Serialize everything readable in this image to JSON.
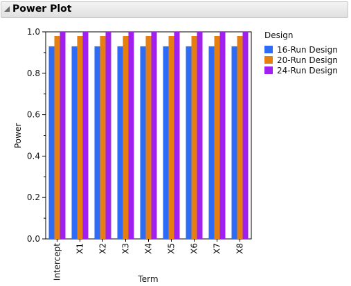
{
  "panel": {
    "title": "Power Plot"
  },
  "chart_data": {
    "type": "bar",
    "title": "",
    "xlabel": "Term",
    "ylabel": "Power",
    "ylim": [
      0,
      1
    ],
    "yticks": [
      "0.0",
      "0.2",
      "0.4",
      "0.6",
      "0.8",
      "1.0"
    ],
    "categories": [
      "Intercept",
      "X1",
      "X2",
      "X3",
      "X4",
      "X5",
      "X6",
      "X7",
      "X8"
    ],
    "legend_title": "Design",
    "legend_position": "right",
    "grid": false,
    "series": [
      {
        "name": "16-Run Design",
        "color": "#2f6cf5",
        "values": [
          0.93,
          0.93,
          0.93,
          0.93,
          0.93,
          0.93,
          0.93,
          0.93,
          0.93
        ]
      },
      {
        "name": "20-Run Design",
        "color": "#e57f12",
        "values": [
          0.98,
          0.98,
          0.98,
          0.98,
          0.98,
          0.98,
          0.98,
          0.98,
          0.98
        ]
      },
      {
        "name": "24-Run Design",
        "color": "#a020f0",
        "values": [
          1.0,
          1.0,
          1.0,
          1.0,
          1.0,
          1.0,
          1.0,
          1.0,
          1.0
        ]
      }
    ]
  }
}
